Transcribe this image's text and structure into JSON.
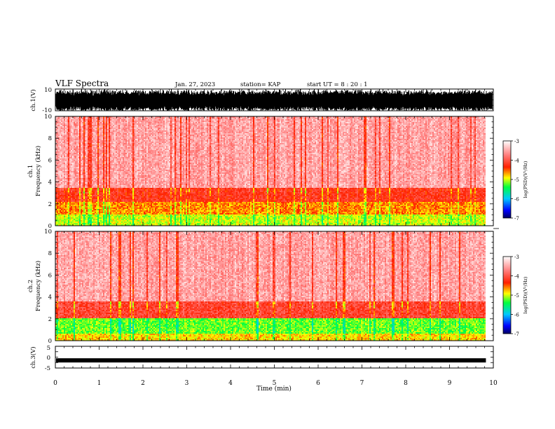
{
  "header": {
    "title": "VLF Spectra",
    "date": "Jan. 27, 2023",
    "station": "station= KAP",
    "start": "start  UT  =   8  : 20 : 1"
  },
  "chart_data": [
    {
      "type": "line",
      "panel": "ch1-waveform",
      "ylabel": "ch.1(V)",
      "ylim": [
        -10,
        10
      ],
      "y_ticks": [
        "10",
        "-10"
      ],
      "xlim": [
        0,
        10
      ]
    },
    {
      "type": "heatmap",
      "panel": "ch1-spectrogram",
      "ylabel": "ch.1\nFrequency (kHz)",
      "ylim": [
        0,
        10
      ],
      "y_ticks": [
        "0",
        "2",
        "4",
        "6",
        "8",
        "10"
      ],
      "xlim": [
        0,
        10
      ],
      "data_end_min": 9.83,
      "colorbar": {
        "label": "log(PSD)(V²/Hz)",
        "range": [
          -7,
          -3
        ],
        "ticks": [
          "-3",
          "-4",
          "-5",
          "-6",
          "-7"
        ]
      },
      "bands_khz": [
        {
          "from": 0.0,
          "to": 1.0,
          "level": -5.0
        },
        {
          "from": 1.0,
          "to": 2.2,
          "level": -4.6
        },
        {
          "from": 2.2,
          "to": 3.4,
          "level": -4.2
        },
        {
          "from": 3.4,
          "to": 10.0,
          "level": -3.5
        }
      ]
    },
    {
      "type": "heatmap",
      "panel": "ch2-spectrogram",
      "ylabel": "ch.2\nFrequency (kHz)",
      "ylim": [
        0,
        10
      ],
      "y_ticks": [
        "0",
        "2",
        "4",
        "6",
        "8",
        "10"
      ],
      "xlim": [
        0,
        10
      ],
      "data_end_min": 9.83,
      "colorbar": {
        "label": "log(PSD)(V²/Hz)",
        "range": [
          -7,
          -3
        ],
        "ticks": [
          "-3",
          "-4",
          "-5",
          "-6",
          "-7"
        ]
      },
      "bands_khz": [
        {
          "from": 0.0,
          "to": 0.6,
          "level": -4.8
        },
        {
          "from": 0.6,
          "to": 2.0,
          "level": -5.2
        },
        {
          "from": 2.0,
          "to": 3.6,
          "level": -4.1
        },
        {
          "from": 3.6,
          "to": 10.0,
          "level": -3.5
        }
      ]
    },
    {
      "type": "line",
      "panel": "ch3-waveform",
      "ylabel": "ch.3(V)",
      "ylim": [
        -5,
        5
      ],
      "y_ticks": [
        "5",
        "0",
        "-5"
      ],
      "xlim": [
        0,
        10
      ],
      "approx_level_v": -1.5
    }
  ],
  "x_axis": {
    "label": "Time (min)",
    "ticks": [
      "0",
      "1",
      "2",
      "3",
      "4",
      "5",
      "6",
      "7",
      "8",
      "9",
      "10"
    ]
  }
}
